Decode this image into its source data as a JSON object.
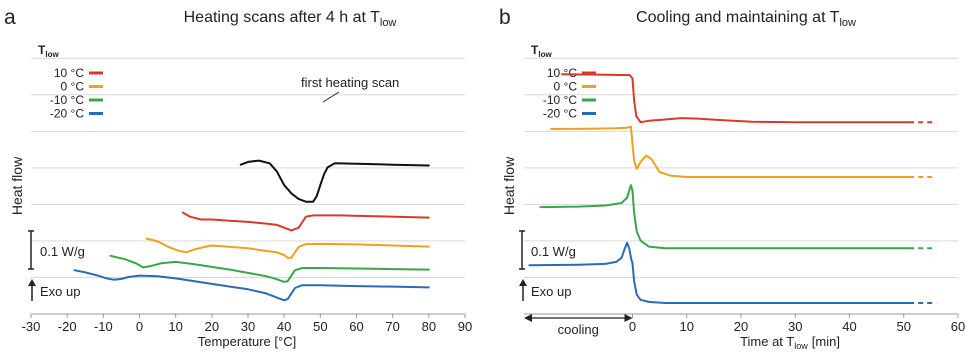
{
  "chart_data": [
    {
      "panel_letter": "a",
      "type": "line",
      "title": "Heating scans after 4 h at T",
      "title_sub": "low",
      "xlabel": "Temperature [°C]",
      "ylabel": "Heat flow",
      "xlim": [
        -30,
        90
      ],
      "x_ticks": [
        -30,
        -20,
        -10,
        0,
        10,
        20,
        30,
        40,
        50,
        60,
        70,
        80,
        90
      ],
      "grid": "horizontal",
      "legend_title": "T",
      "legend_title_sub": "low",
      "legend_position": "top-left",
      "scale_bar_label": "0.1 W/g",
      "exo_label": "Exo up",
      "annotation": "first heating scan",
      "series": [
        {
          "name": "first heating scan",
          "color": "#111111",
          "points": [
            [
              28,
              0.545
            ],
            [
              30,
              0.555
            ],
            [
              33,
              0.56
            ],
            [
              36,
              0.55
            ],
            [
              38,
              0.52
            ],
            [
              40,
              0.47
            ],
            [
              42,
              0.44
            ],
            [
              44,
              0.42
            ],
            [
              46,
              0.41
            ],
            [
              48,
              0.41
            ],
            [
              49,
              0.43
            ],
            [
              50,
              0.47
            ],
            [
              51,
              0.51
            ],
            [
              52,
              0.535
            ],
            [
              54,
              0.55
            ],
            [
              60,
              0.548
            ],
            [
              70,
              0.545
            ],
            [
              80,
              0.542
            ]
          ]
        },
        {
          "name": "10 °C",
          "color": "#d63a2a",
          "points": [
            [
              12,
              0.37
            ],
            [
              14,
              0.355
            ],
            [
              17,
              0.345
            ],
            [
              20,
              0.345
            ],
            [
              25,
              0.34
            ],
            [
              30,
              0.336
            ],
            [
              35,
              0.33
            ],
            [
              38,
              0.325
            ],
            [
              40,
              0.315
            ],
            [
              42,
              0.305
            ],
            [
              44,
              0.315
            ],
            [
              45,
              0.335
            ],
            [
              46,
              0.355
            ],
            [
              48,
              0.36
            ],
            [
              55,
              0.36
            ],
            [
              65,
              0.357
            ],
            [
              80,
              0.352
            ]
          ]
        },
        {
          "name": "0 °C",
          "color": "#f0a020",
          "points": [
            [
              2,
              0.275
            ],
            [
              5,
              0.265
            ],
            [
              8,
              0.245
            ],
            [
              11,
              0.23
            ],
            [
              13,
              0.225
            ],
            [
              15,
              0.235
            ],
            [
              18,
              0.245
            ],
            [
              20,
              0.25
            ],
            [
              25,
              0.245
            ],
            [
              30,
              0.24
            ],
            [
              35,
              0.23
            ],
            [
              38,
              0.225
            ],
            [
              40,
              0.215
            ],
            [
              41,
              0.205
            ],
            [
              42,
              0.205
            ],
            [
              43,
              0.225
            ],
            [
              44,
              0.245
            ],
            [
              46,
              0.255
            ],
            [
              50,
              0.256
            ],
            [
              60,
              0.254
            ],
            [
              70,
              0.25
            ],
            [
              80,
              0.246
            ]
          ]
        },
        {
          "name": "-10 °C",
          "color": "#3aa64a",
          "points": [
            [
              -8,
              0.212
            ],
            [
              -4,
              0.2
            ],
            [
              -1,
              0.185
            ],
            [
              1,
              0.17
            ],
            [
              3,
              0.175
            ],
            [
              6,
              0.185
            ],
            [
              10,
              0.19
            ],
            [
              15,
              0.182
            ],
            [
              20,
              0.172
            ],
            [
              25,
              0.162
            ],
            [
              30,
              0.15
            ],
            [
              35,
              0.138
            ],
            [
              38,
              0.127
            ],
            [
              40,
              0.117
            ],
            [
              41,
              0.12
            ],
            [
              42,
              0.14
            ],
            [
              43,
              0.16
            ],
            [
              45,
              0.168
            ],
            [
              50,
              0.168
            ],
            [
              60,
              0.166
            ],
            [
              70,
              0.164
            ],
            [
              80,
              0.162
            ]
          ]
        },
        {
          "name": "-20 °C",
          "color": "#2a6cb3",
          "points": [
            [
              -18,
              0.16
            ],
            [
              -15,
              0.152
            ],
            [
              -12,
              0.142
            ],
            [
              -9,
              0.13
            ],
            [
              -7,
              0.125
            ],
            [
              -5,
              0.128
            ],
            [
              -3,
              0.135
            ],
            [
              0,
              0.14
            ],
            [
              5,
              0.138
            ],
            [
              10,
              0.13
            ],
            [
              15,
              0.12
            ],
            [
              20,
              0.11
            ],
            [
              25,
              0.1
            ],
            [
              30,
              0.09
            ],
            [
              35,
              0.075
            ],
            [
              38,
              0.06
            ],
            [
              40,
              0.05
            ],
            [
              41,
              0.055
            ],
            [
              42,
              0.075
            ],
            [
              43,
              0.095
            ],
            [
              45,
              0.105
            ],
            [
              50,
              0.105
            ],
            [
              60,
              0.102
            ],
            [
              70,
              0.1
            ],
            [
              80,
              0.097
            ]
          ]
        }
      ]
    },
    {
      "panel_letter": "b",
      "type": "line",
      "title": "Cooling and maintaining at T",
      "title_sub": "low",
      "xlabel": "Time at T",
      "xlabel_sub": "low",
      "xlabel_unit": "[min]",
      "ylabel": "Heat flow",
      "xlim": [
        -20,
        60
      ],
      "x_ticks": [
        0,
        10,
        20,
        30,
        40,
        50,
        60
      ],
      "grid": "horizontal",
      "legend_title": "T",
      "legend_title_sub": "low",
      "legend_position": "top-left",
      "scale_bar_label": "0.1 W/g",
      "exo_label": "Exo up",
      "cooling_label": "cooling",
      "cooling_arrow_x": [
        -20,
        0
      ],
      "solid_end_x": 51,
      "dashed_end_x": 56,
      "series": [
        {
          "name": "10 °C",
          "color": "#d63a2a",
          "points": [
            [
              -13,
              0.875
            ],
            [
              -5,
              0.873
            ],
            [
              -0.5,
              0.872
            ],
            [
              0,
              0.86
            ],
            [
              0.3,
              0.78
            ],
            [
              0.7,
              0.722
            ],
            [
              1.5,
              0.7
            ],
            [
              3,
              0.705
            ],
            [
              6,
              0.71
            ],
            [
              9,
              0.715
            ],
            [
              12,
              0.713
            ],
            [
              16,
              0.708
            ],
            [
              22,
              0.702
            ],
            [
              30,
              0.7
            ],
            [
              40,
              0.7
            ],
            [
              51,
              0.7
            ]
          ]
        },
        {
          "name": "0 °C",
          "color": "#f0a020",
          "points": [
            [
              -15,
              0.675
            ],
            [
              -8,
              0.676
            ],
            [
              -3,
              0.678
            ],
            [
              -1,
              0.68
            ],
            [
              -0.3,
              0.684
            ],
            [
              0,
              0.62
            ],
            [
              0.3,
              0.56
            ],
            [
              0.8,
              0.53
            ],
            [
              1.5,
              0.555
            ],
            [
              2.5,
              0.578
            ],
            [
              3.5,
              0.565
            ],
            [
              5,
              0.518
            ],
            [
              7,
              0.505
            ],
            [
              10,
              0.5
            ],
            [
              20,
              0.5
            ],
            [
              51,
              0.5
            ]
          ]
        },
        {
          "name": "-10 °C",
          "color": "#3aa64a",
          "points": [
            [
              -17,
              0.39
            ],
            [
              -10,
              0.392
            ],
            [
              -5,
              0.396
            ],
            [
              -2,
              0.405
            ],
            [
              -1,
              0.425
            ],
            [
              -0.3,
              0.47
            ],
            [
              0,
              0.45
            ],
            [
              0.3,
              0.37
            ],
            [
              0.8,
              0.3
            ],
            [
              1.5,
              0.268
            ],
            [
              3,
              0.246
            ],
            [
              6,
              0.24
            ],
            [
              15,
              0.24
            ],
            [
              51,
              0.24
            ]
          ]
        },
        {
          "name": "-20 °C",
          "color": "#2a6cb3",
          "points": [
            [
              -19,
              0.178
            ],
            [
              -10,
              0.18
            ],
            [
              -5,
              0.183
            ],
            [
              -3,
              0.19
            ],
            [
              -2,
              0.205
            ],
            [
              -1.5,
              0.235
            ],
            [
              -1,
              0.26
            ],
            [
              -0.6,
              0.24
            ],
            [
              -0.3,
              0.205
            ],
            [
              0,
              0.185
            ],
            [
              0.3,
              0.12
            ],
            [
              0.8,
              0.07
            ],
            [
              1.5,
              0.052
            ],
            [
              3,
              0.044
            ],
            [
              6,
              0.04
            ],
            [
              20,
              0.04
            ],
            [
              51,
              0.04
            ]
          ]
        }
      ]
    }
  ]
}
